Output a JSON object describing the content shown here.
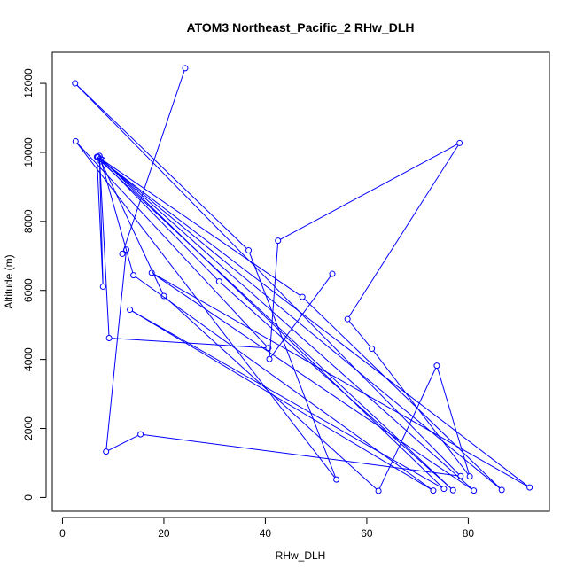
{
  "chart_data": {
    "type": "scatter",
    "title": "ATOM3 Northeast_Pacific_2 RHw_DLH",
    "xlabel": "RHw_DLH",
    "ylabel": "Altitude (m)",
    "xlim": [
      -2,
      96
    ],
    "ylim": [
      -400,
      12900
    ],
    "xticks": [
      0,
      20,
      40,
      60,
      80
    ],
    "yticks": [
      0,
      2000,
      4000,
      6000,
      8000,
      10000,
      12000
    ],
    "grid": false,
    "color": "#0000ff",
    "series": [
      {
        "name": "",
        "points": [
          [
            24.2,
            12440
          ],
          [
            11.8,
            7060
          ],
          [
            12.6,
            7180
          ],
          [
            8.6,
            1330
          ],
          [
            15.4,
            1830
          ],
          [
            78.5,
            620
          ],
          [
            2.5,
            12000
          ],
          [
            36.7,
            7160
          ],
          [
            54.0,
            520
          ],
          [
            2.6,
            10320
          ],
          [
            40.6,
            4330
          ],
          [
            9.2,
            4620
          ],
          [
            7.3,
            9900
          ],
          [
            8.0,
            6110
          ],
          [
            6.8,
            9870
          ],
          [
            92.1,
            290
          ],
          [
            17.6,
            6510
          ],
          [
            81.1,
            200
          ],
          [
            7.5,
            9820
          ],
          [
            14.0,
            6440
          ],
          [
            73.1,
            200
          ],
          [
            13.3,
            5440
          ],
          [
            75.2,
            250
          ],
          [
            7.9,
            9780
          ],
          [
            47.3,
            5810
          ],
          [
            86.6,
            220
          ],
          [
            7.0,
            9870
          ],
          [
            30.9,
            6260
          ],
          [
            77.0,
            210
          ],
          [
            7.6,
            9740
          ],
          [
            20.0,
            5840
          ],
          [
            62.3,
            190
          ],
          [
            73.8,
            3820
          ],
          [
            80.3,
            610
          ],
          [
            61.0,
            4310
          ],
          [
            56.2,
            5170
          ],
          [
            78.3,
            10270
          ],
          [
            42.5,
            7440
          ],
          [
            40.8,
            4010
          ],
          [
            53.2,
            6480
          ]
        ]
      }
    ]
  }
}
